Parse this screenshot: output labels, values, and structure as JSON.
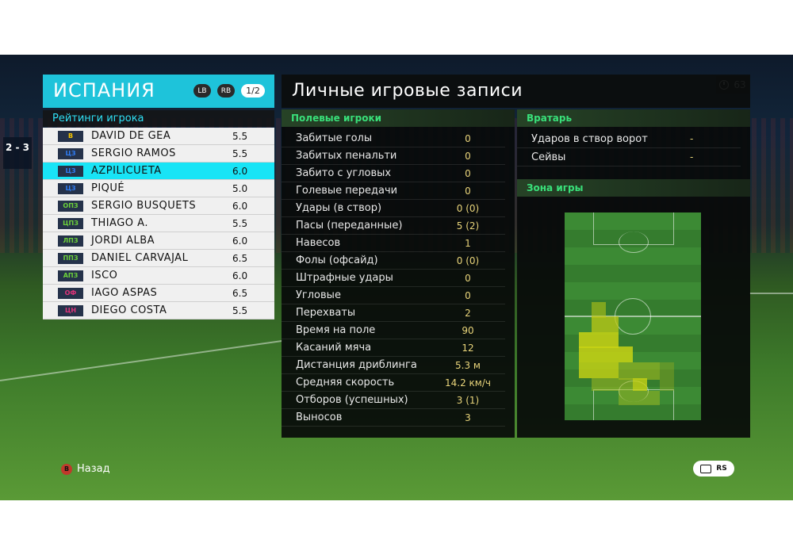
{
  "score": "2 - 3",
  "timer": "63",
  "team": {
    "name": "ИСПАНИЯ",
    "lb": "LB",
    "rb": "RB",
    "page": "1/2",
    "ratings_title": "Рейтинги игрока"
  },
  "players": [
    {
      "pos": "В",
      "name": "DAVID DE GEA",
      "rating": "5.5",
      "color": "#f5c400",
      "selected": false
    },
    {
      "pos": "ЦЗ",
      "name": "SERGIO RAMOS",
      "rating": "5.5",
      "color": "#2f7df5",
      "selected": false
    },
    {
      "pos": "ЦЗ",
      "name": "AZPILICUETA",
      "rating": "6.0",
      "color": "#2f7df5",
      "selected": true
    },
    {
      "pos": "ЦЗ",
      "name": "PIQUÉ",
      "rating": "5.0",
      "color": "#2f7df5",
      "selected": false
    },
    {
      "pos": "ОПЗ",
      "name": "SERGIO BUSQUETS",
      "rating": "6.0",
      "color": "#6cd13a",
      "selected": false
    },
    {
      "pos": "ЦПЗ",
      "name": "THIAGO A.",
      "rating": "5.5",
      "color": "#6cd13a",
      "selected": false
    },
    {
      "pos": "ЛПЗ",
      "name": "JORDI ALBA",
      "rating": "6.0",
      "color": "#6cd13a",
      "selected": false
    },
    {
      "pos": "ППЗ",
      "name": "DANIEL CARVAJAL",
      "rating": "6.5",
      "color": "#6cd13a",
      "selected": false
    },
    {
      "pos": "АПЗ",
      "name": "ISCO",
      "rating": "6.0",
      "color": "#6cd13a",
      "selected": false
    },
    {
      "pos": "ОФ",
      "name": "IAGO ASPAS",
      "rating": "6.5",
      "color": "#e0337a",
      "selected": false
    },
    {
      "pos": "ЦН",
      "name": "DIEGO COSTA",
      "rating": "5.5",
      "color": "#e0337a",
      "selected": false
    }
  ],
  "main": {
    "title": "Личные игровые записи",
    "field_header": "Полевые игроки",
    "gk_header": "Вратарь",
    "zone_header": "Зона игры"
  },
  "stats": [
    {
      "label": "Забитые голы",
      "value": "0"
    },
    {
      "label": "Забитых пенальти",
      "value": "0"
    },
    {
      "label": "Забито с угловых",
      "value": "0"
    },
    {
      "label": "Голевые передачи",
      "value": "0"
    },
    {
      "label": "Удары (в створ)",
      "value": "0 (0)"
    },
    {
      "label": "Пасы (переданные)",
      "value": "5 (2)"
    },
    {
      "label": "Навесов",
      "value": "1"
    },
    {
      "label": "Фолы (офсайд)",
      "value": "0 (0)"
    },
    {
      "label": "Штрафные удары",
      "value": "0"
    },
    {
      "label": "Угловые",
      "value": "0"
    },
    {
      "label": "Перехваты",
      "value": "2"
    },
    {
      "label": "Время на поле",
      "value": "90"
    },
    {
      "label": "Касаний мяча",
      "value": "12"
    },
    {
      "label": "Дистанция дриблинга",
      "value": "5.3 м"
    },
    {
      "label": "Средняя скорость",
      "value": "14.2 км/ч"
    },
    {
      "label": "Отборов (успешных)",
      "value": "3 (1)"
    },
    {
      "label": "Выносов",
      "value": "3"
    }
  ],
  "gk_stats": [
    {
      "label": "Ударов в створ ворот",
      "value": "-"
    },
    {
      "label": "Сейвы",
      "value": "-"
    }
  ],
  "footer": {
    "back_key": "B",
    "back_label": "Назад",
    "rs_label": "RS"
  },
  "colors": {
    "accent": "#1ec3da",
    "section_header": "#39e07a",
    "value": "#e8d47a"
  }
}
